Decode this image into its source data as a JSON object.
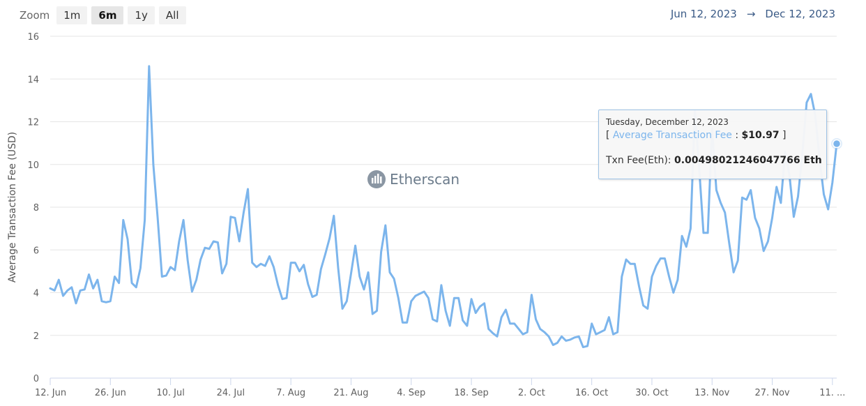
{
  "zoom": {
    "label": "Zoom",
    "buttons": [
      "1m",
      "6m",
      "1y",
      "All"
    ],
    "active": "6m"
  },
  "range": {
    "from": "Jun 12, 2023",
    "arrow": "→",
    "to": "Dec 12, 2023"
  },
  "watermark": "Etherscan",
  "tooltip": {
    "date": "Tuesday, December 12, 2023",
    "bracket_open": "[ ",
    "series_name": "Average Transaction Fee",
    "separator": " : ",
    "value": "$10.97",
    "bracket_close": " ]",
    "eth_label": "Txn Fee(Eth): ",
    "eth_value": "0.00498021246047766 Eth"
  },
  "colors": {
    "line": "#7cb5ec",
    "grid": "#e6e6e6",
    "axis_text": "#606060"
  },
  "chart_data": {
    "type": "line",
    "ylabel": "Average Transaction Fee (USD)",
    "xlabel": "",
    "ylim": [
      0,
      16
    ],
    "yticks": [
      0,
      2,
      4,
      6,
      8,
      10,
      12,
      14,
      16
    ],
    "x_start": "2023-06-12",
    "x_end": "2023-12-12",
    "x_tick_labels": [
      "12. Jun",
      "26. Jun",
      "10. Jul",
      "24. Jul",
      "7. Aug",
      "21. Aug",
      "4. Sep",
      "18. Sep",
      "2. Oct",
      "16. Oct",
      "30. Oct",
      "13. Nov",
      "27. Nov",
      "11. ..."
    ],
    "x_tick_dates": [
      "2023-06-12",
      "2023-06-26",
      "2023-07-10",
      "2023-07-24",
      "2023-08-07",
      "2023-08-21",
      "2023-09-04",
      "2023-09-18",
      "2023-10-02",
      "2023-10-16",
      "2023-10-30",
      "2023-11-13",
      "2023-11-27",
      "2023-12-11"
    ],
    "grid": true,
    "legend": "none",
    "series": [
      {
        "values": [
          4.2,
          4.1,
          4.6,
          3.85,
          4.1,
          4.25,
          3.5,
          4.1,
          4.15,
          4.85,
          4.2,
          4.6,
          3.6,
          3.55,
          3.6,
          4.75,
          4.45,
          7.4,
          6.5,
          4.45,
          4.25,
          5.15,
          7.4,
          14.6,
          10.0,
          7.5,
          4.75,
          4.8,
          5.2,
          5.05,
          6.4,
          7.4,
          5.5,
          4.05,
          4.6,
          5.55,
          6.1,
          6.05,
          6.4,
          6.35,
          4.9,
          5.35,
          7.55,
          7.5,
          6.4,
          7.75,
          8.85,
          5.4,
          5.2,
          5.35,
          5.25,
          5.7,
          5.2,
          4.35,
          3.7,
          3.75,
          5.4,
          5.4,
          5.0,
          5.3,
          4.4,
          3.8,
          3.9,
          5.1,
          5.8,
          6.55,
          7.6,
          5.15,
          3.25,
          3.6,
          4.9,
          6.2,
          4.75,
          4.15,
          4.95,
          3.0,
          3.15,
          5.9,
          7.15,
          4.95,
          4.65,
          3.75,
          2.6,
          2.6,
          3.6,
          3.85,
          3.95,
          4.05,
          3.75,
          2.75,
          2.65,
          4.35,
          3.15,
          2.45,
          3.75,
          3.75,
          2.7,
          2.45,
          3.7,
          3.05,
          3.35,
          3.5,
          2.3,
          2.1,
          1.95,
          2.85,
          3.2,
          2.55,
          2.55,
          2.3,
          2.05,
          2.15,
          3.9,
          2.75,
          2.3,
          2.15,
          1.95,
          1.55,
          1.65,
          1.95,
          1.75,
          1.8,
          1.9,
          1.95,
          1.45,
          1.5,
          2.55,
          2.05,
          2.15,
          2.25,
          2.85,
          2.05,
          2.15,
          4.75,
          5.55,
          5.35,
          5.35,
          4.3,
          3.4,
          3.25,
          4.75,
          5.25,
          5.6,
          5.6,
          4.75,
          4.0,
          4.6,
          6.65,
          6.15,
          7.0,
          12.5,
          9.8,
          6.8,
          6.8,
          11.7,
          8.8,
          8.2,
          7.75,
          6.3,
          4.95,
          5.5,
          8.45,
          8.35,
          8.8,
          7.5,
          7.0,
          5.95,
          6.4,
          7.5,
          8.95,
          8.2,
          10.6,
          9.5,
          7.55,
          8.5,
          10.5,
          12.9,
          13.3,
          12.3,
          10.3,
          8.6,
          7.9,
          9.15,
          10.97
        ]
      }
    ]
  }
}
